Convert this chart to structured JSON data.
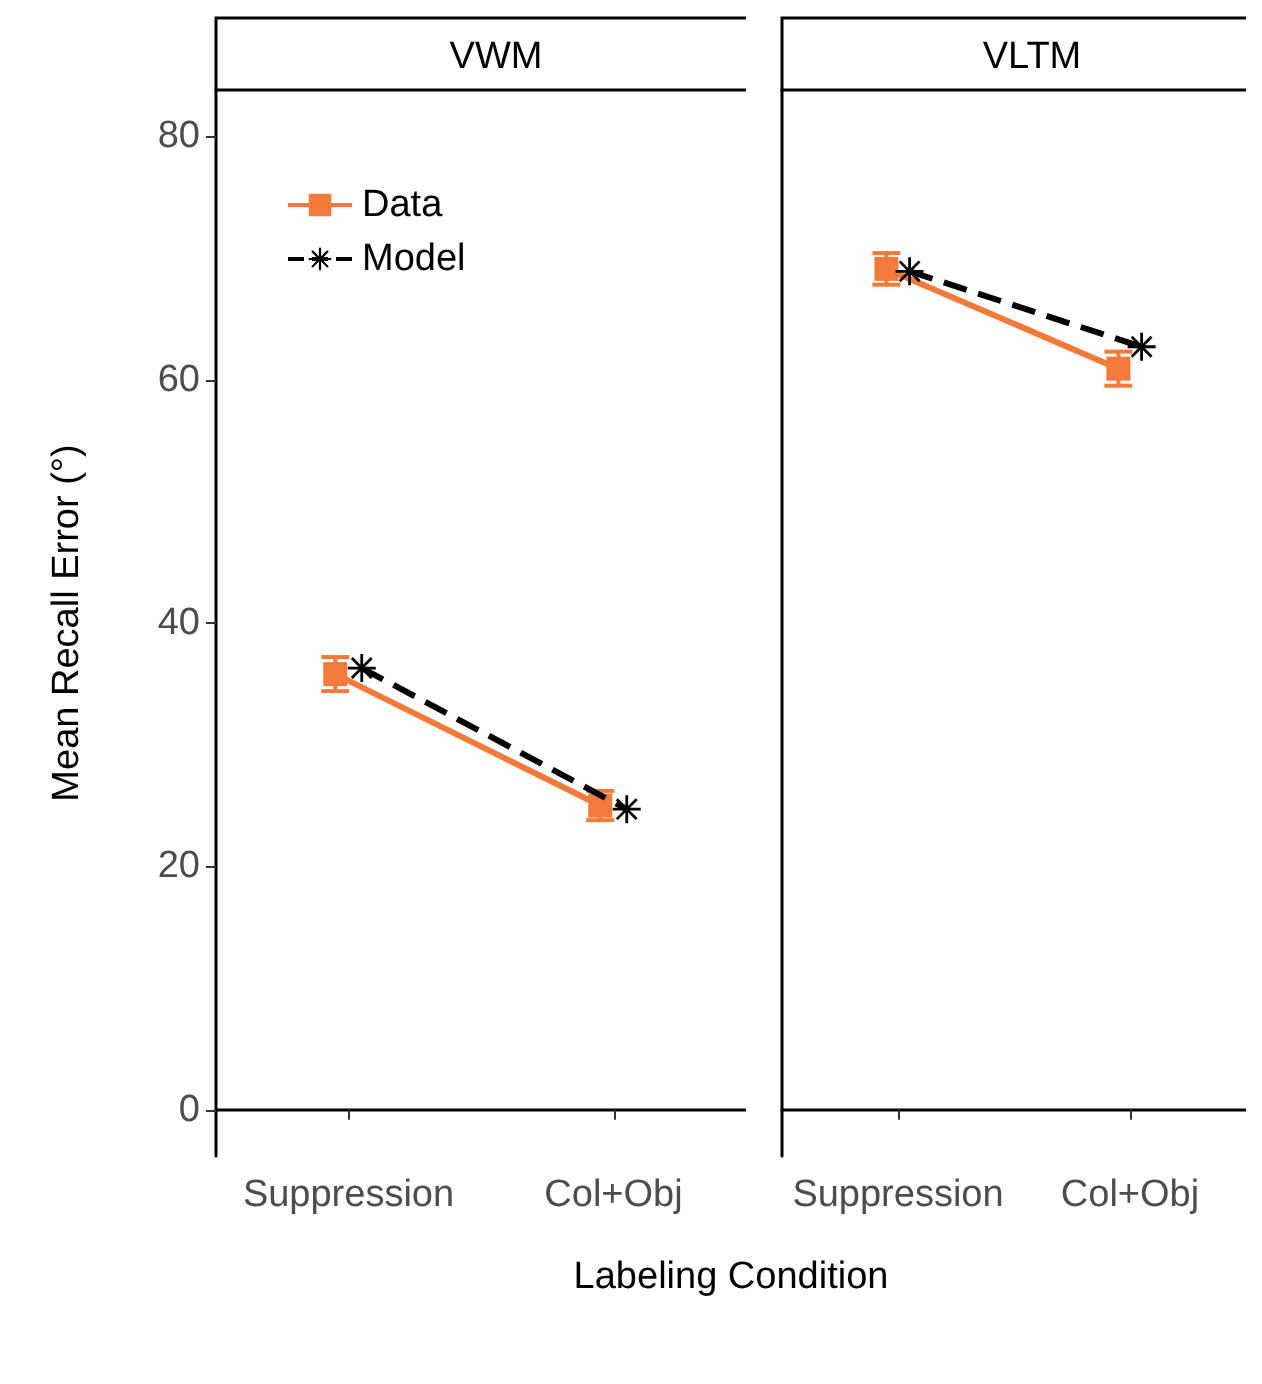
{
  "chart_data": [
    {
      "type": "line",
      "title": "VWM",
      "ylabel": "Mean Recall Error (°)",
      "xlabel": "Labeling Condition",
      "categories": [
        "Suppression",
        "Col+Obj"
      ],
      "ylim": [
        -3.8,
        83.8
      ],
      "yticks": [
        0,
        20,
        40,
        60,
        80
      ],
      "legend": "top left",
      "grid": false,
      "series": [
        {
          "name": "Data",
          "color": "#f47a3a",
          "values": [
            35.8,
            25.0
          ],
          "errors": [
            1.4,
            1.2
          ],
          "marker": "square",
          "line_style": "solid"
        },
        {
          "name": "Model",
          "color": "#000000",
          "values": [
            36.3,
            24.7
          ],
          "marker": "cross",
          "line_style": "dashed"
        }
      ]
    },
    {
      "type": "line",
      "title": "VLTM",
      "categories": [
        "Suppression",
        "Col+Obj"
      ],
      "ylim": [
        -3.8,
        83.8
      ],
      "yticks": [
        0,
        20,
        40,
        60,
        80
      ],
      "tick_labels": "x",
      "grid": false,
      "series": [
        {
          "color": "#f47a3a",
          "values": [
            69.1,
            60.9
          ],
          "errors": [
            1.3,
            1.4
          ],
          "marker": "square",
          "line_style": "solid"
        },
        {
          "color": "#000000",
          "values": [
            68.9,
            62.7
          ],
          "marker": "cross",
          "line_style": "dashed"
        }
      ]
    }
  ]
}
